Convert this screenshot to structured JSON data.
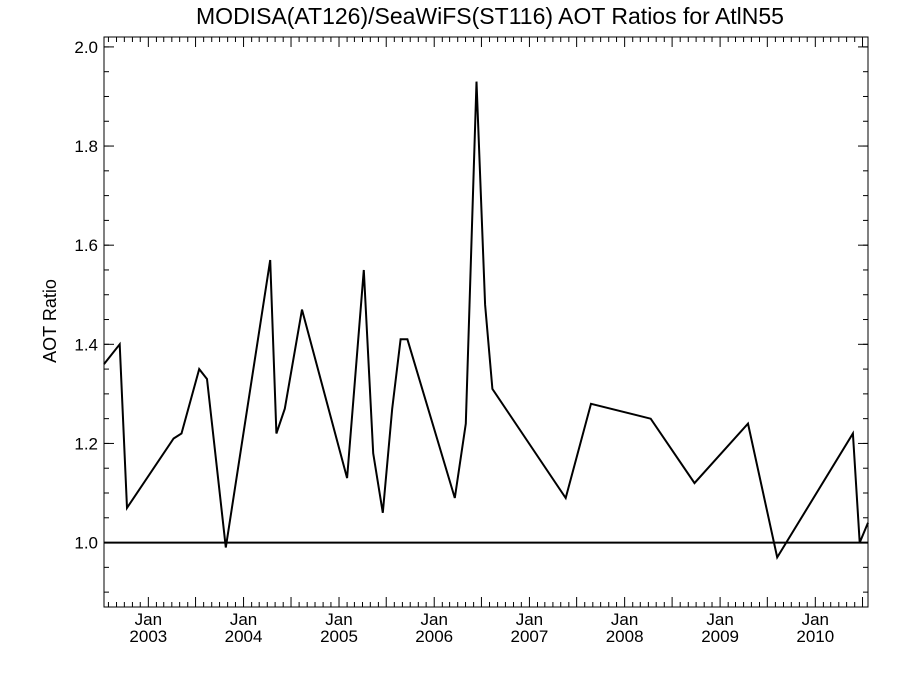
{
  "chart_data": {
    "type": "line",
    "title": "MODISA(AT126)/SeaWiFS(ST116)  AOT Ratios for AtlN55",
    "xlabel": "",
    "ylabel": "AOT Ratio",
    "xlim": [
      "2002-07-15",
      "2010-07-22"
    ],
    "ylim": [
      0.87,
      2.02
    ],
    "yticks": [
      1.0,
      1.2,
      1.4,
      1.6,
      1.8,
      2.0
    ],
    "ytick_labels": [
      "1.0",
      "1.2",
      "1.4",
      "1.6",
      "1.8",
      "2.0"
    ],
    "xticks": [
      {
        "date": "2003-01-01",
        "month": "Jan",
        "year": "2003"
      },
      {
        "date": "2004-01-01",
        "month": "Jan",
        "year": "2004"
      },
      {
        "date": "2005-01-01",
        "month": "Jan",
        "year": "2005"
      },
      {
        "date": "2006-01-01",
        "month": "Jan",
        "year": "2006"
      },
      {
        "date": "2007-01-01",
        "month": "Jan",
        "year": "2007"
      },
      {
        "date": "2008-01-01",
        "month": "Jan",
        "year": "2008"
      },
      {
        "date": "2009-01-01",
        "month": "Jan",
        "year": "2009"
      },
      {
        "date": "2010-01-01",
        "month": "Jan",
        "year": "2010"
      }
    ],
    "reference_line": 1.0,
    "grid": false,
    "series": [
      {
        "points": [
          [
            "2002-07-15",
            1.36
          ],
          [
            "2002-09-13",
            1.4
          ],
          [
            "2002-10-11",
            1.07
          ],
          [
            "2003-04-08",
            1.21
          ],
          [
            "2003-05-08",
            1.22
          ],
          [
            "2003-07-15",
            1.35
          ],
          [
            "2003-08-14",
            1.33
          ],
          [
            "2003-10-25",
            0.99
          ],
          [
            "2004-04-12",
            1.57
          ],
          [
            "2004-05-06",
            1.22
          ],
          [
            "2004-06-07",
            1.27
          ],
          [
            "2004-08-12",
            1.47
          ],
          [
            "2005-02-01",
            1.13
          ],
          [
            "2005-04-06",
            1.55
          ],
          [
            "2005-05-12",
            1.18
          ],
          [
            "2005-06-18",
            1.06
          ],
          [
            "2005-07-24",
            1.27
          ],
          [
            "2005-08-25",
            1.41
          ],
          [
            "2005-09-20",
            1.41
          ],
          [
            "2006-03-21",
            1.09
          ],
          [
            "2006-05-02",
            1.24
          ],
          [
            "2006-06-12",
            1.93
          ],
          [
            "2006-07-15",
            1.48
          ],
          [
            "2006-08-12",
            1.31
          ],
          [
            "2007-05-20",
            1.09
          ],
          [
            "2007-08-25",
            1.28
          ],
          [
            "2008-04-10",
            1.25
          ],
          [
            "2008-09-25",
            1.12
          ],
          [
            "2009-04-18",
            1.24
          ],
          [
            "2009-08-08",
            0.97
          ],
          [
            "2010-05-25",
            1.22
          ],
          [
            "2010-06-20",
            1.0
          ],
          [
            "2010-07-22",
            1.04
          ]
        ]
      }
    ]
  }
}
